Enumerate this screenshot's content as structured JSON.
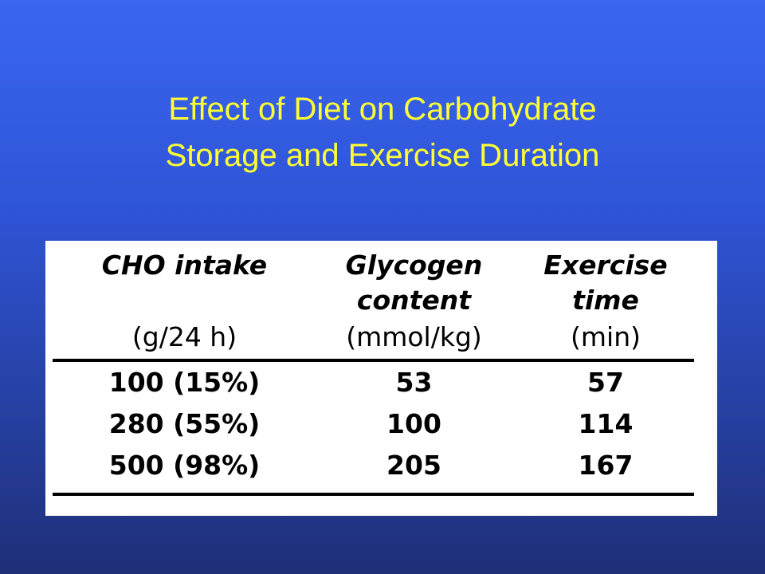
{
  "title": {
    "line1": "Effect of Diet on Carbohydrate",
    "line2": "Storage and Exercise Duration"
  },
  "table": {
    "headers": [
      {
        "line1": "CHO intake",
        "line2": "",
        "line3": "(g/24 h)"
      },
      {
        "line1": "Glycogen",
        "line2": "content",
        "line3": "(mmol/kg)"
      },
      {
        "line1": "Exercise",
        "line2": "time",
        "line3": "(min)"
      }
    ],
    "rows": [
      [
        "100 (15%)",
        "53",
        "57"
      ],
      [
        "280 (55%)",
        "100",
        "114"
      ],
      [
        "500 (98%)",
        "205",
        "167"
      ]
    ]
  },
  "colors": {
    "background_top": "#3a66f0",
    "background_bottom": "#1f2f78",
    "title_text": "#ffff33",
    "table_background": "#ffffff",
    "table_text": "#000000"
  }
}
